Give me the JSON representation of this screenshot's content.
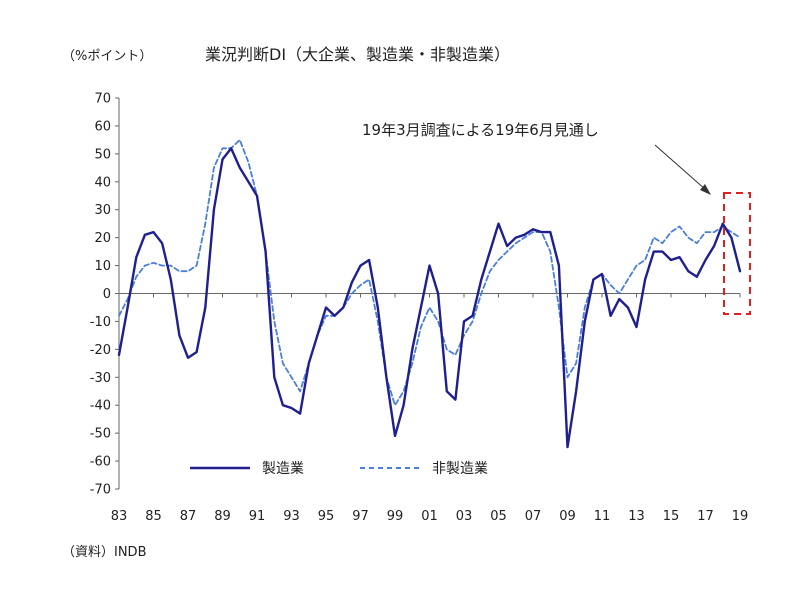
{
  "chart_data": {
    "type": "line",
    "title": "業況判断DI（大企業、製造業・非製造業）",
    "unit_label": "（%ポイント）",
    "source": "（資料）INDB",
    "annotation": "19年3月調査による19年6月見通し",
    "x_tick_labels": [
      "83",
      "85",
      "87",
      "89",
      "91",
      "93",
      "95",
      "97",
      "99",
      "01",
      "03",
      "05",
      "07",
      "09",
      "11",
      "13",
      "15",
      "17",
      "19"
    ],
    "xlim": [
      1983,
      2019
    ],
    "ylim": [
      -70,
      70
    ],
    "y_ticks": [
      70,
      60,
      50,
      40,
      30,
      20,
      10,
      0,
      -10,
      -20,
      -30,
      -40,
      -50,
      -60,
      -70
    ],
    "series": [
      {
        "name": "製造業",
        "style": "solid",
        "color": "#1f1f8f",
        "x": [
          1983.0,
          1983.5,
          1984.0,
          1984.5,
          1985.0,
          1985.5,
          1986.0,
          1986.5,
          1987.0,
          1987.5,
          1988.0,
          1988.5,
          1989.0,
          1989.5,
          1990.0,
          1990.5,
          1991.0,
          1991.5,
          1992.0,
          1992.5,
          1993.0,
          1993.5,
          1994.0,
          1994.5,
          1995.0,
          1995.5,
          1996.0,
          1996.5,
          1997.0,
          1997.5,
          1998.0,
          1998.5,
          1999.0,
          1999.5,
          2000.0,
          2000.5,
          2001.0,
          2001.5,
          2002.0,
          2002.5,
          2003.0,
          2003.5,
          2004.0,
          2004.5,
          2005.0,
          2005.5,
          2006.0,
          2006.5,
          2007.0,
          2007.5,
          2008.0,
          2008.5,
          2009.0,
          2009.5,
          2010.0,
          2010.5,
          2011.0,
          2011.5,
          2012.0,
          2012.5,
          2013.0,
          2013.5,
          2014.0,
          2014.5,
          2015.0,
          2015.5,
          2016.0,
          2016.5,
          2017.0,
          2017.5,
          2018.0,
          2018.5,
          2019.0
        ],
        "values": [
          -22,
          -5,
          13,
          21,
          22,
          18,
          5,
          -15,
          -23,
          -21,
          -5,
          30,
          48,
          52,
          45,
          40,
          35,
          15,
          -30,
          -40,
          -41,
          -43,
          -25,
          -15,
          -5,
          -8,
          -5,
          4,
          10,
          12,
          -5,
          -30,
          -51,
          -40,
          -20,
          -5,
          10,
          0,
          -35,
          -38,
          -10,
          -8,
          5,
          15,
          25,
          17,
          20,
          21,
          23,
          22,
          22,
          10,
          -55,
          -35,
          -10,
          5,
          7,
          -8,
          -2,
          -5,
          -12,
          5,
          15,
          15,
          12,
          13,
          8,
          6,
          12,
          17,
          25,
          20,
          8
        ]
      },
      {
        "name": "非製造業",
        "style": "dashed",
        "color": "#4a7fd8",
        "x": [
          1983.0,
          1983.5,
          1984.0,
          1984.5,
          1985.0,
          1985.5,
          1986.0,
          1986.5,
          1987.0,
          1987.5,
          1988.0,
          1988.5,
          1989.0,
          1989.5,
          1990.0,
          1990.5,
          1991.0,
          1991.5,
          1992.0,
          1992.5,
          1993.0,
          1993.5,
          1994.0,
          1994.5,
          1995.0,
          1995.5,
          1996.0,
          1996.5,
          1997.0,
          1997.5,
          1998.0,
          1998.5,
          1999.0,
          1999.5,
          2000.0,
          2000.5,
          2001.0,
          2001.5,
          2002.0,
          2002.5,
          2003.0,
          2003.5,
          2004.0,
          2004.5,
          2005.0,
          2005.5,
          2006.0,
          2006.5,
          2007.0,
          2007.5,
          2008.0,
          2008.5,
          2009.0,
          2009.5,
          2010.0,
          2010.5,
          2011.0,
          2011.5,
          2012.0,
          2012.5,
          2013.0,
          2013.5,
          2014.0,
          2014.5,
          2015.0,
          2015.5,
          2016.0,
          2016.5,
          2017.0,
          2017.5,
          2018.0,
          2018.5,
          2019.0
        ],
        "values": [
          -8,
          -2,
          6,
          10,
          11,
          10,
          10,
          8,
          8,
          10,
          25,
          45,
          52,
          52,
          55,
          47,
          35,
          15,
          -10,
          -25,
          -30,
          -35,
          -25,
          -15,
          -8,
          -8,
          -5,
          0,
          3,
          5,
          -10,
          -30,
          -40,
          -35,
          -25,
          -12,
          -5,
          -10,
          -20,
          -22,
          -15,
          -10,
          0,
          8,
          12,
          15,
          18,
          20,
          22,
          22,
          15,
          -5,
          -30,
          -25,
          -5,
          5,
          7,
          3,
          0,
          5,
          10,
          12,
          20,
          18,
          22,
          24,
          20,
          18,
          22,
          22,
          24,
          22,
          20
        ]
      }
    ]
  }
}
